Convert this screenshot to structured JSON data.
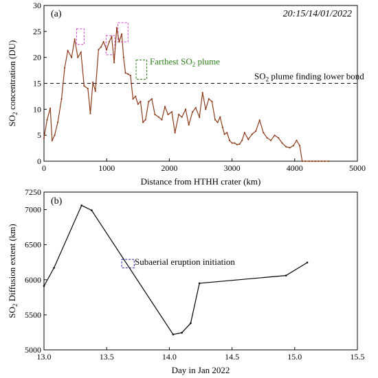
{
  "figure": {
    "timestamp": "20:15/14/01/2022"
  },
  "chart_data": [
    {
      "panel_label": "(a)",
      "type": "line",
      "xlabel": "Distance from HTHH crater (km)",
      "ylabel": {
        "pre": "SO",
        "sub": "2",
        "post": " concentration (DU)"
      },
      "xlim": [
        0,
        5000
      ],
      "ylim": [
        0,
        30
      ],
      "xticks": [
        0,
        1000,
        2000,
        3000,
        4000,
        5000
      ],
      "yticks": [
        0,
        5,
        10,
        15,
        20,
        25,
        30
      ],
      "line_color": "#8b3a1a",
      "x": [
        0,
        50,
        100,
        130,
        170,
        220,
        280,
        330,
        380,
        440,
        490,
        540,
        590,
        640,
        700,
        740,
        780,
        820,
        870,
        910,
        950,
        1000,
        1040,
        1080,
        1120,
        1160,
        1200,
        1240,
        1270,
        1300,
        1340,
        1380,
        1420,
        1460,
        1500,
        1540,
        1580,
        1620,
        1670,
        1720,
        1770,
        1830,
        1880,
        1930,
        1980,
        2040,
        2090,
        2150,
        2200,
        2260,
        2310,
        2370,
        2420,
        2480,
        2530,
        2580,
        2630,
        2680,
        2730,
        2770,
        2810,
        2850,
        2880,
        2920,
        2960,
        3000,
        3040,
        3080,
        3120,
        3160,
        3200,
        3260,
        3320,
        3380,
        3440,
        3500,
        3560,
        3620,
        3680,
        3740,
        3800,
        3860,
        3920,
        3980,
        4030,
        4080,
        4120,
        4170,
        4230,
        4280,
        4330,
        4380,
        4430,
        4480,
        4540
      ],
      "y": [
        4.5,
        8,
        10.2,
        4,
        5,
        7.5,
        12,
        18,
        21.3,
        20,
        23.5,
        20,
        21,
        14.5,
        14,
        9.2,
        15.2,
        13.5,
        21.5,
        22,
        23,
        21.5,
        23,
        24,
        19,
        25.7,
        23,
        24.5,
        20,
        17,
        16.8,
        16.5,
        12,
        12.5,
        11,
        11.5,
        7.5,
        8,
        11.5,
        12,
        9,
        8.5,
        8,
        10.5,
        9,
        9.5,
        5.5,
        9,
        8.5,
        10,
        7,
        9.5,
        10.3,
        8.5,
        13.2,
        10,
        12,
        11.5,
        8,
        7.5,
        8.5,
        6.5,
        5.2,
        5.5,
        4,
        3.5,
        3.5,
        3.2,
        3.3,
        4,
        5.5,
        4.2,
        5.2,
        5.8,
        7.9,
        5.5,
        4.5,
        4,
        5,
        4.5,
        3.5,
        2.8,
        2.6,
        3,
        4,
        3,
        0,
        0,
        0,
        0,
        0,
        0,
        0,
        0,
        0
      ],
      "annotations": {
        "lower_bond_label": {
          "pre": "SO",
          "sub": "2",
          "post": " plume finding lower bond"
        },
        "lower_bond_value": 15,
        "farthest_label": {
          "pre": "Farthest SO",
          "sub": "2",
          "post": " plume"
        },
        "farthest_color": "#2e7d1a",
        "peak_box_color": "#cc44cc"
      }
    },
    {
      "panel_label": "(b)",
      "type": "line",
      "xlabel": "Day in Jan 2022",
      "ylabel": {
        "pre": "SO",
        "sub": "2",
        "post": " Diffusion extent (km)"
      },
      "xlim": [
        13.0,
        15.5
      ],
      "ylim": [
        5000,
        7250
      ],
      "xticks": [
        13.0,
        13.5,
        14.0,
        14.5,
        15.0,
        15.5
      ],
      "xtick_labels": [
        "13.0",
        "13.5",
        "14.0",
        "14.5",
        "15.0",
        "15.5"
      ],
      "yticks": [
        5000,
        5500,
        6000,
        6500,
        7000
      ],
      "extra_ytick": 7250,
      "line_color": "#000000",
      "x": [
        13.0,
        13.08,
        13.3,
        13.38,
        14.03,
        14.1,
        14.17,
        14.24,
        14.93,
        15.1
      ],
      "y": [
        5910,
        6170,
        7060,
        6990,
        5220,
        5245,
        5380,
        5950,
        6060,
        6245
      ],
      "annotations": {
        "initiation_label": "Subaerial eruption initiation",
        "initiation_color": "#2222bb"
      }
    }
  ]
}
